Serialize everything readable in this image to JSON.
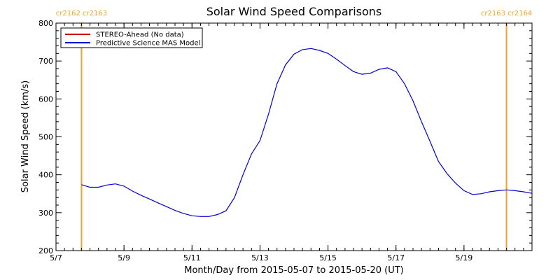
{
  "chart_data": {
    "type": "line",
    "title": "Solar Wind Speed Comparisons",
    "xlabel": "Month/Day from 2015-05-07 to 2015-05-20 (UT)",
    "ylabel": "Solar Wind Speed (km/s)",
    "xlim": [
      "2015-05-07",
      "2015-05-21"
    ],
    "ylim": [
      200,
      800
    ],
    "x_ticks": [
      {
        "date": "2015-05-07",
        "label": "5/7"
      },
      {
        "date": "2015-05-09",
        "label": "5/9"
      },
      {
        "date": "2015-05-11",
        "label": "5/11"
      },
      {
        "date": "2015-05-13",
        "label": "5/13"
      },
      {
        "date": "2015-05-15",
        "label": "5/15"
      },
      {
        "date": "2015-05-17",
        "label": "5/17"
      },
      {
        "date": "2015-05-19",
        "label": "5/19"
      }
    ],
    "y_ticks": [
      200,
      300,
      400,
      500,
      600,
      700,
      800
    ],
    "grid": false,
    "legend_position": "top-left",
    "series": [
      {
        "name": "STEREO-Ahead (No data)",
        "color": "#cc0000",
        "x": [],
        "values": []
      },
      {
        "name": "Predictive Science MAS Model",
        "color": "#0000cc",
        "x": [
          "2015-05-07 18:00",
          "2015-05-08 00:00",
          "2015-05-08 06:00",
          "2015-05-08 12:00",
          "2015-05-08 18:00",
          "2015-05-09 00:00",
          "2015-05-09 06:00",
          "2015-05-09 12:00",
          "2015-05-09 18:00",
          "2015-05-10 00:00",
          "2015-05-10 06:00",
          "2015-05-10 12:00",
          "2015-05-10 18:00",
          "2015-05-11 00:00",
          "2015-05-11 06:00",
          "2015-05-11 12:00",
          "2015-05-11 18:00",
          "2015-05-12 00:00",
          "2015-05-12 06:00",
          "2015-05-12 12:00",
          "2015-05-12 18:00",
          "2015-05-13 00:00",
          "2015-05-13 06:00",
          "2015-05-13 12:00",
          "2015-05-13 18:00",
          "2015-05-14 00:00",
          "2015-05-14 06:00",
          "2015-05-14 12:00",
          "2015-05-14 18:00",
          "2015-05-15 00:00",
          "2015-05-15 06:00",
          "2015-05-15 12:00",
          "2015-05-15 18:00",
          "2015-05-16 00:00",
          "2015-05-16 06:00",
          "2015-05-16 12:00",
          "2015-05-16 18:00",
          "2015-05-17 00:00",
          "2015-05-17 06:00",
          "2015-05-17 12:00",
          "2015-05-17 18:00",
          "2015-05-18 00:00",
          "2015-05-18 06:00",
          "2015-05-18 12:00",
          "2015-05-18 18:00",
          "2015-05-19 00:00",
          "2015-05-19 06:00",
          "2015-05-19 12:00",
          "2015-05-19 18:00",
          "2015-05-20 00:00",
          "2015-05-20 06:00",
          "2015-05-20 12:00",
          "2015-05-20 18:00",
          "2015-05-21 00:00"
        ],
        "values": [
          374,
          367,
          367,
          373,
          376,
          370,
          357,
          346,
          336,
          326,
          316,
          306,
          298,
          292,
          290,
          290,
          295,
          305,
          340,
          400,
          455,
          490,
          560,
          640,
          690,
          718,
          730,
          733,
          728,
          720,
          705,
          688,
          672,
          665,
          668,
          678,
          682,
          672,
          640,
          595,
          540,
          488,
          435,
          403,
          378,
          358,
          348,
          350,
          355,
          358,
          360,
          358,
          355,
          351
        ]
      }
    ],
    "carrington_markers": [
      {
        "date": "2015-05-07 18:00",
        "label": "cr2162 cr2163",
        "color": "#f0a030"
      },
      {
        "date": "2015-05-20 06:00",
        "label": "cr2163 cr2164",
        "color": "#f0a030"
      }
    ]
  }
}
